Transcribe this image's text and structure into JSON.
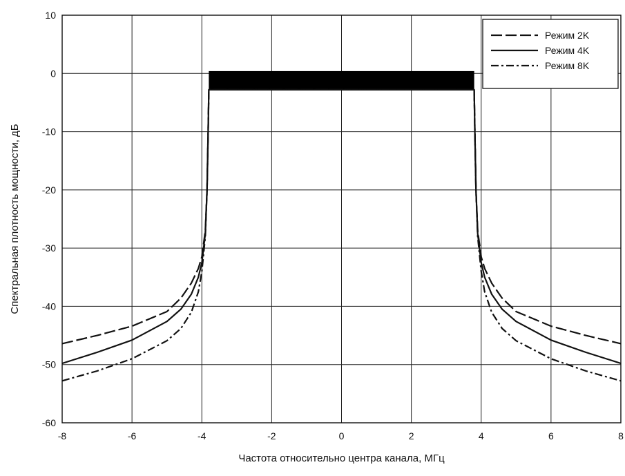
{
  "chart_data": {
    "type": "line",
    "title": "",
    "xlabel": "Частота относительно центра канала, МГц",
    "ylabel": "Спектральная плотность мощности, дБ",
    "xlim": [
      -8,
      8
    ],
    "ylim": [
      -60,
      10
    ],
    "x_ticks": [
      -8,
      -6,
      -4,
      -2,
      0,
      2,
      4,
      6,
      8
    ],
    "y_ticks": [
      10,
      0,
      -10,
      -20,
      -30,
      -40,
      -50,
      -60
    ],
    "x_tick_labels": [
      "-8",
      "-6",
      "-4",
      "-2",
      "0",
      "2",
      "4",
      "6",
      "8"
    ],
    "y_tick_labels": [
      "10",
      "0",
      "-10",
      "-20",
      "-30",
      "-40",
      "-50",
      "-60"
    ],
    "grid": true,
    "legend_position": "top-right",
    "in_band": {
      "x_range": [
        -3.8,
        3.8
      ],
      "y_range": [
        -2.8,
        0.4
      ]
    },
    "series": [
      {
        "name": "Режим 2K",
        "dash": "long-dash",
        "color": "#111111",
        "points": [
          [
            -8,
            -46.4
          ],
          [
            -7,
            -45.0
          ],
          [
            -6,
            -43.4
          ],
          [
            -5,
            -40.9
          ],
          [
            -4.6,
            -38.6
          ],
          [
            -4.3,
            -36.0
          ],
          [
            -4.1,
            -33.5
          ],
          [
            -4.0,
            -31.5
          ],
          [
            -3.9,
            -27.0
          ],
          [
            -3.85,
            -20.0
          ],
          [
            -3.82,
            -10.0
          ],
          [
            -3.8,
            -2.8
          ],
          [
            3.8,
            -2.8
          ],
          [
            3.82,
            -10.0
          ],
          [
            3.85,
            -20.0
          ],
          [
            3.9,
            -27.0
          ],
          [
            4.0,
            -31.5
          ],
          [
            4.1,
            -33.5
          ],
          [
            4.3,
            -36.0
          ],
          [
            4.6,
            -38.6
          ],
          [
            5,
            -40.9
          ],
          [
            6,
            -43.4
          ],
          [
            7,
            -45.0
          ],
          [
            8,
            -46.4
          ]
        ]
      },
      {
        "name": "Режим 4K",
        "dash": "solid",
        "color": "#111111",
        "points": [
          [
            -8,
            -49.8
          ],
          [
            -7,
            -47.9
          ],
          [
            -6,
            -45.8
          ],
          [
            -5,
            -42.6
          ],
          [
            -4.6,
            -40.5
          ],
          [
            -4.3,
            -37.9
          ],
          [
            -4.1,
            -35.0
          ],
          [
            -4.0,
            -32.5
          ],
          [
            -3.9,
            -27.5
          ],
          [
            -3.85,
            -20.0
          ],
          [
            -3.82,
            -10.0
          ],
          [
            -3.8,
            -2.8
          ],
          [
            3.8,
            -2.8
          ],
          [
            3.82,
            -10.0
          ],
          [
            3.85,
            -20.0
          ],
          [
            3.9,
            -27.5
          ],
          [
            4.0,
            -32.5
          ],
          [
            4.1,
            -35.0
          ],
          [
            4.3,
            -37.9
          ],
          [
            4.6,
            -40.5
          ],
          [
            5,
            -42.6
          ],
          [
            6,
            -45.8
          ],
          [
            7,
            -47.9
          ],
          [
            8,
            -49.8
          ]
        ]
      },
      {
        "name": "Режим 8K",
        "dash": "dash-dot",
        "color": "#111111",
        "points": [
          [
            -8,
            -52.8
          ],
          [
            -7,
            -51.1
          ],
          [
            -6,
            -49.0
          ],
          [
            -5,
            -45.9
          ],
          [
            -4.6,
            -43.8
          ],
          [
            -4.3,
            -41.0
          ],
          [
            -4.1,
            -37.5
          ],
          [
            -4.0,
            -34.0
          ],
          [
            -3.9,
            -28.0
          ],
          [
            -3.85,
            -20.0
          ],
          [
            -3.82,
            -10.0
          ],
          [
            -3.8,
            -2.8
          ],
          [
            3.8,
            -2.8
          ],
          [
            3.82,
            -10.0
          ],
          [
            3.85,
            -20.0
          ],
          [
            3.9,
            -28.0
          ],
          [
            4.0,
            -34.0
          ],
          [
            4.1,
            -37.5
          ],
          [
            4.3,
            -41.0
          ],
          [
            4.6,
            -43.8
          ],
          [
            5,
            -45.9
          ],
          [
            6,
            -49.0
          ],
          [
            7,
            -51.1
          ],
          [
            8,
            -52.8
          ]
        ]
      }
    ]
  }
}
